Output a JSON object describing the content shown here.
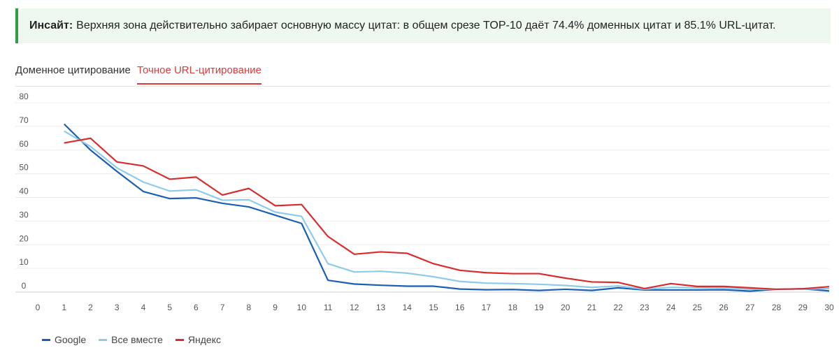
{
  "insight": {
    "label": "Инсайт:",
    "text": "Верхняя зона действительно забирает основную массу цитат: в общем срезе TOP-10 даёт 74.4% доменных цитат и 85.1% URL-цитат."
  },
  "tabs": [
    {
      "label": "Доменное цитирование",
      "active": false
    },
    {
      "label": "Точное URL-цитирование",
      "active": true
    }
  ],
  "chart_data": {
    "type": "line",
    "title": "",
    "xlabel": "",
    "ylabel": "",
    "x": [
      1,
      2,
      3,
      4,
      5,
      6,
      7,
      8,
      9,
      10,
      11,
      12,
      13,
      14,
      15,
      16,
      17,
      18,
      19,
      20,
      21,
      22,
      23,
      24,
      25,
      26,
      27,
      28,
      29,
      30
    ],
    "x_ticks": [
      0,
      1,
      2,
      3,
      4,
      5,
      6,
      7,
      8,
      9,
      10,
      11,
      12,
      13,
      14,
      15,
      16,
      17,
      18,
      19,
      20,
      21,
      22,
      23,
      24,
      25,
      26,
      27,
      28,
      29,
      30
    ],
    "y_ticks": [
      0,
      10,
      20,
      30,
      40,
      50,
      60,
      70,
      80
    ],
    "xlim": [
      0,
      30
    ],
    "ylim": [
      0,
      80
    ],
    "grid": true,
    "legend_position": "bottom-left",
    "series": [
      {
        "name": "Google",
        "color": "#1a5fb4",
        "values": [
          71,
          60,
          51,
          42.5,
          39.5,
          39.8,
          37.5,
          36,
          32.5,
          29,
          5,
          3.4,
          2.9,
          2.5,
          2.5,
          1.3,
          1,
          1.1,
          0.7,
          1.2,
          0.7,
          1.8,
          0.9,
          0.9,
          0.9,
          1.0,
          0.4,
          1.2,
          1.4,
          0.5
        ]
      },
      {
        "name": "Все вместе",
        "color": "#8ecbea",
        "values": [
          68,
          61.5,
          52.5,
          46.5,
          42.7,
          43.2,
          38.8,
          39,
          33.8,
          32,
          12,
          8.5,
          8.8,
          8,
          6.5,
          4.5,
          3.8,
          3.6,
          3.3,
          2.8,
          2.0,
          2.6,
          1.2,
          2.0,
          1.8,
          1.8,
          1.2,
          1.2,
          1.3,
          1.5
        ]
      },
      {
        "name": "Яндекс",
        "color": "#d92d2d",
        "values": [
          63,
          65,
          55,
          53.3,
          47.7,
          48.6,
          41,
          43.8,
          36.5,
          37,
          23.5,
          16,
          17,
          16.4,
          12,
          9.2,
          8.2,
          7.8,
          7.8,
          5.9,
          4.3,
          4.1,
          1.5,
          3.6,
          2.4,
          2.4,
          1.8,
          1.2,
          1.4,
          2.3
        ]
      }
    ]
  }
}
